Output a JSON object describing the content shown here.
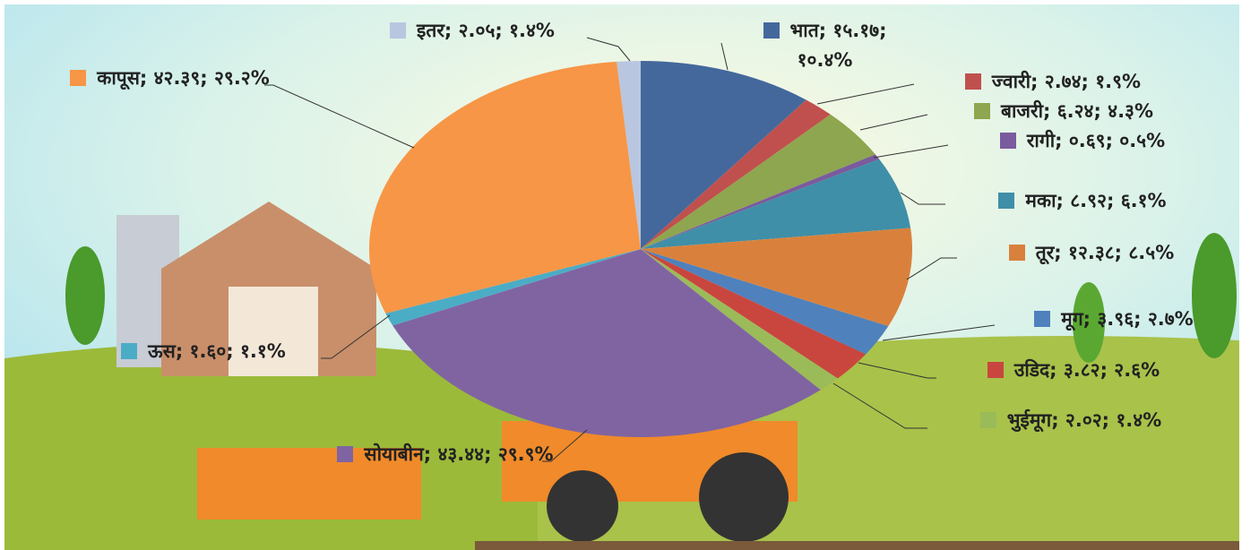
{
  "chart_data": {
    "type": "pie",
    "categories": [
      "भात",
      "ज्वारी",
      "बाजरी",
      "रागी",
      "मका",
      "तूर",
      "मूग",
      "उडिद",
      "भुईमूग",
      "सोयाबीन",
      "ऊस",
      "कापूस",
      "इतर"
    ],
    "values": [
      15.17,
      2.74,
      6.24,
      0.69,
      8.92,
      12.38,
      3.96,
      3.82,
      2.02,
      43.44,
      1.6,
      42.39,
      2.05
    ],
    "labels": [
      "भात; १५.१७; १०.४%",
      "ज्वारी; २.७४; १.९%",
      "बाजरी; ६.२४; ४.३%",
      "रागी; ०.६९; ०.५%",
      "मका; ८.९२; ६.१%",
      "तूर; १२.३८; ८.५%",
      "मूग; ३.९६; २.७%",
      "उडिद; ३.८२; २.६%",
      "भुईमूग; २.०२; १.४%",
      "सोयाबीन; ४३.४४; २९.९%",
      "ऊस; १.६०; १.१%",
      "कापूस; ४२.३९; २९.२%",
      "इतर; २.०५; १.४%"
    ],
    "colors": [
      "#44689c",
      "#c0504d",
      "#8ea64f",
      "#7a5b9e",
      "#3f8fa8",
      "#d9813c",
      "#4f81bd",
      "#c9463f",
      "#9bbb59",
      "#8064a2",
      "#4bacc6",
      "#f79646",
      "#b9c6e0"
    ]
  }
}
